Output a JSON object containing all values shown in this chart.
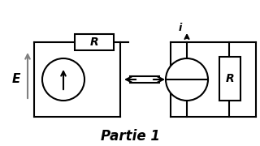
{
  "bg_color": "#ffffff",
  "line_color": "#000000",
  "line_width": 1.5,
  "title": "Partie 1",
  "title_fontsize": 12,
  "title_style": "italic",
  "title_weight": "bold",
  "label_E": "E",
  "label_R1": "R",
  "label_R2": "R",
  "label_i": "i",
  "figsize": [
    3.2,
    1.8
  ],
  "dpi": 100
}
